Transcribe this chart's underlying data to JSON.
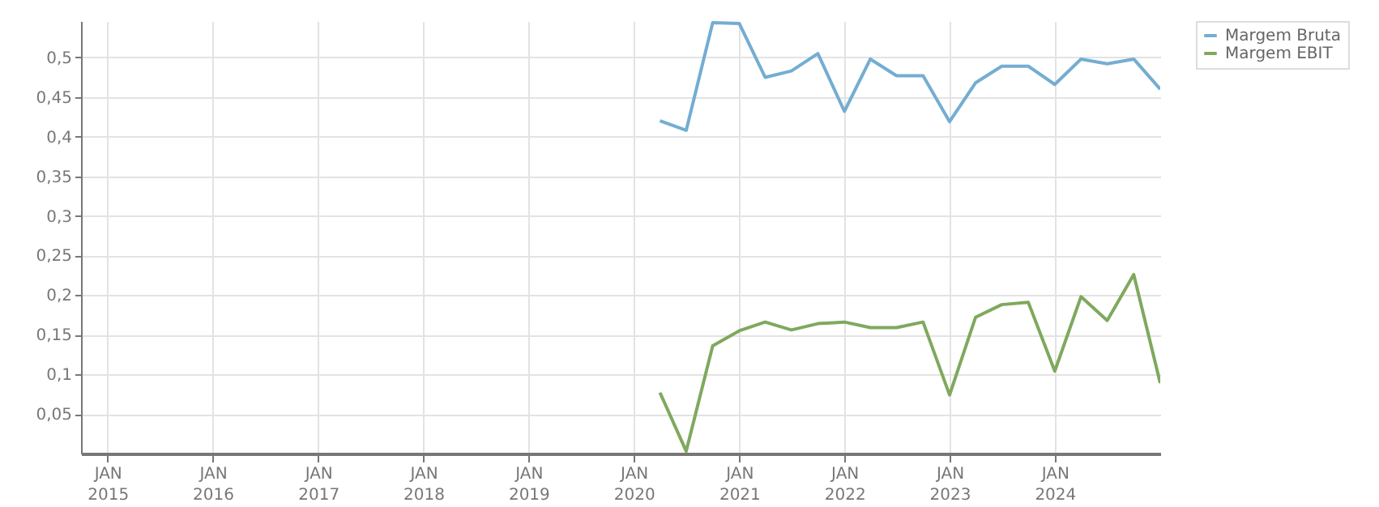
{
  "chart_data": {
    "type": "line",
    "x": [
      "2020-04",
      "2020-07",
      "2020-10",
      "2021-01",
      "2021-04",
      "2021-07",
      "2021-10",
      "2022-01",
      "2022-04",
      "2022-07",
      "2022-10",
      "2023-01",
      "2023-04",
      "2023-07",
      "2023-10",
      "2024-01",
      "2024-04",
      "2024-07",
      "2024-10",
      "2025-01"
    ],
    "series": [
      {
        "name": "Margem Bruta",
        "color": "#74add1",
        "values": [
          0.42,
          0.408,
          0.544,
          0.543,
          0.475,
          0.483,
          0.505,
          0.432,
          0.498,
          0.477,
          0.477,
          0.419,
          0.468,
          0.489,
          0.489,
          0.466,
          0.498,
          0.492,
          0.498,
          0.46
        ]
      },
      {
        "name": "Margem EBIT",
        "color": "#7fa95e",
        "values": [
          0.077,
          0.003,
          0.136,
          0.155,
          0.166,
          0.156,
          0.164,
          0.166,
          0.159,
          0.159,
          0.166,
          0.074,
          0.172,
          0.188,
          0.191,
          0.104,
          0.198,
          0.168,
          0.226,
          0.089
        ]
      }
    ],
    "xlim": [
      "2014-10",
      "2025-01"
    ],
    "xticks": [
      {
        "value": "2015-01",
        "label": "JAN 2015"
      },
      {
        "value": "2016-01",
        "label": "JAN 2016"
      },
      {
        "value": "2017-01",
        "label": "JAN 2017"
      },
      {
        "value": "2018-01",
        "label": "JAN 2018"
      },
      {
        "value": "2019-01",
        "label": "JAN 2019"
      },
      {
        "value": "2020-01",
        "label": "JAN 2020"
      },
      {
        "value": "2021-01",
        "label": "JAN 2021"
      },
      {
        "value": "2022-01",
        "label": "JAN 2022"
      },
      {
        "value": "2023-01",
        "label": "JAN 2023"
      },
      {
        "value": "2024-01",
        "label": "JAN 2024"
      }
    ],
    "ylim": [
      0,
      0.546
    ],
    "yticks": [
      {
        "value": 0.05,
        "label": "0,05"
      },
      {
        "value": 0.1,
        "label": "0,1"
      },
      {
        "value": 0.15,
        "label": "0,15"
      },
      {
        "value": 0.2,
        "label": "0,2"
      },
      {
        "value": 0.25,
        "label": "0,25"
      },
      {
        "value": 0.3,
        "label": "0,3"
      },
      {
        "value": 0.35,
        "label": "0,35"
      },
      {
        "value": 0.4,
        "label": "0,4"
      },
      {
        "value": 0.45,
        "label": "0,45"
      },
      {
        "value": 0.5,
        "label": "0,5"
      }
    ],
    "grid": true,
    "legend": "top right"
  }
}
